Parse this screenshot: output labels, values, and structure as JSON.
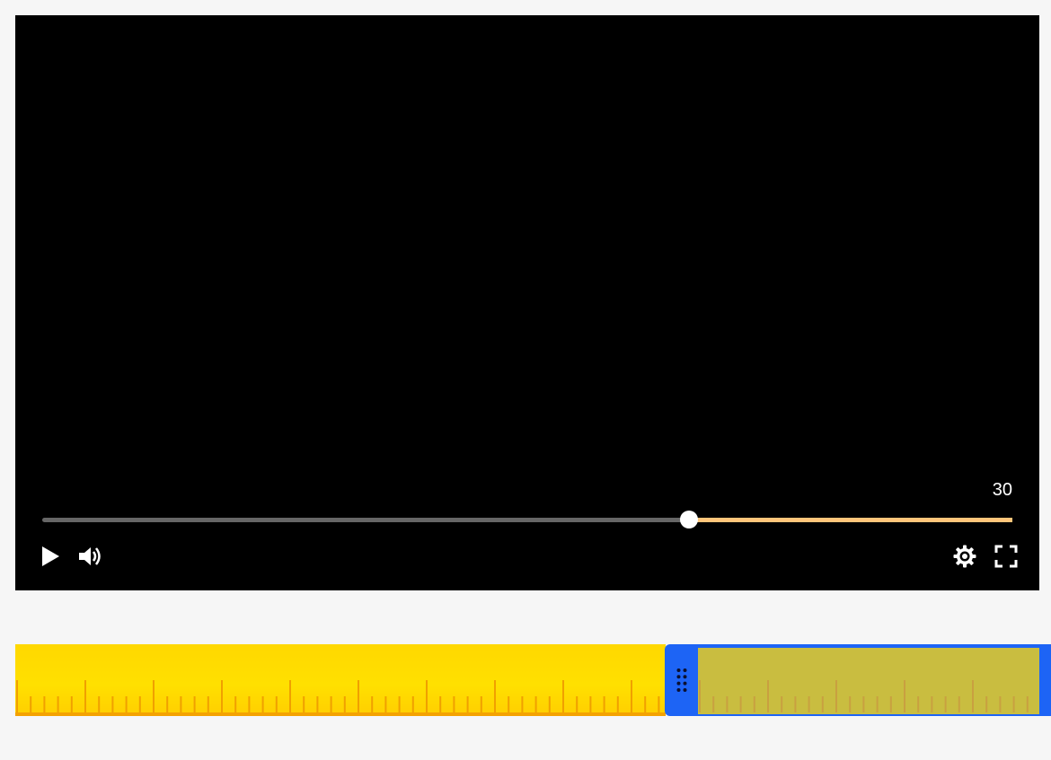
{
  "player": {
    "time_label": "30",
    "progress_fraction": 0.667,
    "colors": {
      "background": "#000000",
      "played": "#666666",
      "remaining": "#ffc57a",
      "thumb": "#ffffff"
    },
    "controls": {
      "play_icon": "play-icon",
      "volume_icon": "volume-icon",
      "settings_icon": "gear-icon",
      "fullscreen_icon": "fullscreen-icon"
    }
  },
  "timeline": {
    "colors": {
      "strip": "#ffdc00",
      "strip_border": "#f4a200",
      "ticks": "#f0a000",
      "selection": "#1d64f5",
      "selected_strip": "#c9bd40",
      "selected_ticks": "#c9a040"
    },
    "handle_icon": "drag-handle-icon"
  }
}
